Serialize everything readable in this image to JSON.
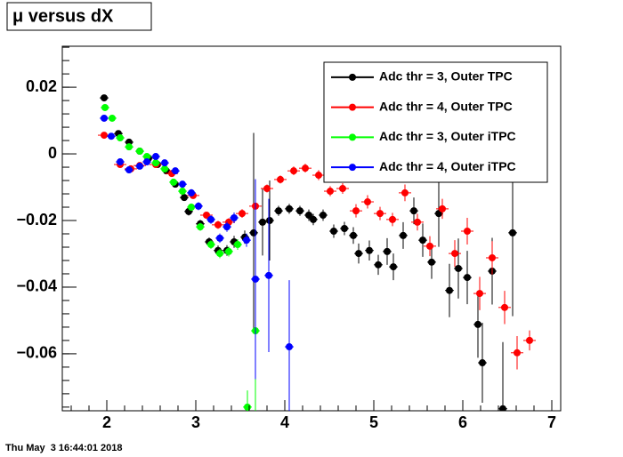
{
  "chart_data": {
    "type": "errorbar",
    "title": "μ versus dX",
    "timestamp": "Thu May  3 16:44:01 2018",
    "xlim": [
      1.5,
      7.1
    ],
    "ylim": [
      -0.0771,
      0.0323
    ],
    "xticks": [
      2,
      3,
      4,
      5,
      6,
      7
    ],
    "yticks": [
      {
        "value": 0.02,
        "label": "0.02"
      },
      0,
      {
        "value": -0.02,
        "label": "−0.02"
      },
      {
        "value": -0.04,
        "label": "−0.04"
      },
      {
        "value": -0.06,
        "label": "−0.06"
      }
    ],
    "grid": false,
    "legend": "top-right",
    "series": [
      {
        "name": "Adc thr = 3, Outer TPC",
        "color": "#000000",
        "xerr": 0.05,
        "x": [
          1.97,
          2.13,
          2.25,
          2.37,
          2.47,
          2.57,
          2.67,
          2.77,
          2.87,
          2.92,
          3.05,
          3.15,
          3.25,
          3.35,
          3.43,
          3.55,
          3.65,
          3.75,
          3.83,
          3.93,
          4.05,
          4.17,
          4.27,
          4.32,
          4.43,
          4.55,
          4.67,
          4.77,
          4.83,
          4.95,
          5.05,
          5.15,
          5.22,
          5.33,
          5.45,
          5.55,
          5.65,
          5.73,
          5.85,
          5.95,
          6.05,
          6.17,
          6.22,
          6.33,
          6.45,
          6.56
        ],
        "values": [
          0.0168,
          0.0061,
          0.0035,
          0.0008,
          -0.0013,
          -0.0032,
          -0.0051,
          -0.0091,
          -0.0131,
          -0.0173,
          -0.021,
          -0.0264,
          -0.029,
          -0.029,
          -0.0264,
          -0.025,
          -0.0237,
          -0.0205,
          -0.02,
          -0.0171,
          -0.0165,
          -0.0171,
          -0.0184,
          -0.0197,
          -0.0184,
          -0.0232,
          -0.0224,
          -0.0245,
          -0.0299,
          -0.029,
          -0.0333,
          -0.0293,
          -0.0339,
          -0.0245,
          -0.0171,
          -0.0259,
          -0.0325,
          -0.0179,
          -0.041,
          -0.0344,
          -0.0371,
          -0.0512,
          -0.0627,
          -0.0352,
          -0.0765,
          -0.0237
        ],
        "errors": [
          0.0008,
          0.0007,
          0.0007,
          0.0007,
          0.0008,
          0.0008,
          0.0009,
          0.001,
          0.001,
          0.0012,
          0.0012,
          0.0013,
          0.0015,
          0.0016,
          0.0018,
          0.002,
          0.03,
          0.01,
          0.012,
          0.0015,
          0.0015,
          0.0015,
          0.0017,
          0.0017,
          0.0017,
          0.002,
          0.002,
          0.0025,
          0.003,
          0.003,
          0.003,
          0.004,
          0.004,
          0.004,
          0.004,
          0.005,
          0.005,
          0.01,
          0.008,
          0.009,
          0.008,
          0.01,
          0.012,
          0.01,
          0.02,
          0.025
        ]
      },
      {
        "name": "Adc thr = 4, Outer TPC",
        "color": "#ff0000",
        "xerr": 0.07,
        "x": [
          1.97,
          2.15,
          2.27,
          2.37,
          2.55,
          2.73,
          2.97,
          3.12,
          3.25,
          3.37,
          3.52,
          3.67,
          3.8,
          3.95,
          4.1,
          4.23,
          4.38,
          4.51,
          4.65,
          4.8,
          4.93,
          5.07,
          5.21,
          5.35,
          5.49,
          5.63,
          5.77,
          5.91,
          6.05,
          6.19,
          6.33,
          6.47,
          6.61,
          6.75
        ],
        "values": [
          0.0056,
          -0.0032,
          -0.0045,
          -0.0035,
          -0.0032,
          -0.0059,
          -0.0125,
          -0.0184,
          -0.0213,
          -0.0205,
          -0.0179,
          -0.0157,
          -0.0104,
          -0.0077,
          -0.0051,
          -0.0043,
          -0.0064,
          -0.0112,
          -0.0104,
          -0.0171,
          -0.0144,
          -0.0179,
          -0.0197,
          -0.0117,
          -0.0205,
          -0.0277,
          -0.0165,
          -0.0299,
          -0.0232,
          -0.0419,
          -0.0312,
          -0.0461,
          -0.0597,
          -0.056
        ],
        "errors": [
          0.0007,
          0.0007,
          0.0007,
          0.0007,
          0.0008,
          0.0008,
          0.001,
          0.001,
          0.0012,
          0.0012,
          0.0013,
          0.0015,
          0.0012,
          0.0012,
          0.0013,
          0.0013,
          0.0015,
          0.0015,
          0.0016,
          0.002,
          0.002,
          0.002,
          0.002,
          0.0025,
          0.0025,
          0.003,
          0.003,
          0.004,
          0.004,
          0.005,
          0.005,
          0.005,
          0.005,
          0.003
        ]
      },
      {
        "name": "Adc thr = 3, Outer iTPC",
        "color": "#00ff00",
        "xerr": 0.05,
        "x": [
          1.98,
          2.06,
          2.15,
          2.25,
          2.37,
          2.45,
          2.55,
          2.65,
          2.75,
          2.85,
          2.95,
          3.05,
          3.17,
          3.27,
          3.37,
          3.47,
          3.58,
          3.67
        ],
        "values": [
          0.0139,
          0.0107,
          0.0048,
          0.0021,
          0.0008,
          -0.0008,
          -0.0027,
          -0.0045,
          -0.0085,
          -0.0112,
          -0.016,
          -0.0219,
          -0.0272,
          -0.0299,
          -0.0293,
          -0.0272,
          -0.076,
          -0.0531
        ],
        "errors": [
          0.0008,
          0.0007,
          0.0007,
          0.0007,
          0.0007,
          0.0008,
          0.0008,
          0.0009,
          0.001,
          0.001,
          0.0011,
          0.0012,
          0.0013,
          0.0014,
          0.0015,
          0.0016,
          0.005,
          0.03
        ]
      },
      {
        "name": "Adc thr = 4, Outer iTPC",
        "color": "#0000ff",
        "xerr": 0.05,
        "x": [
          1.97,
          2.05,
          2.15,
          2.25,
          2.37,
          2.45,
          2.55,
          2.65,
          2.77,
          2.85,
          2.95,
          3.03,
          3.17,
          3.27,
          3.35,
          3.43,
          3.57,
          3.67,
          3.82,
          4.05
        ],
        "values": [
          0.0107,
          0.0053,
          -0.0024,
          -0.0048,
          -0.0037,
          -0.0024,
          -0.0008,
          -0.0027,
          -0.0051,
          -0.0091,
          -0.0117,
          -0.0157,
          -0.0197,
          -0.0253,
          -0.0219,
          -0.0192,
          -0.0259,
          -0.0376,
          -0.0365,
          -0.0579
        ],
        "errors": [
          0.0008,
          0.0007,
          0.0007,
          0.0007,
          0.0007,
          0.0008,
          0.0008,
          0.0009,
          0.001,
          0.001,
          0.0011,
          0.0012,
          0.0013,
          0.0014,
          0.0015,
          0.0016,
          0.002,
          0.03,
          0.023,
          0.02
        ]
      }
    ]
  }
}
